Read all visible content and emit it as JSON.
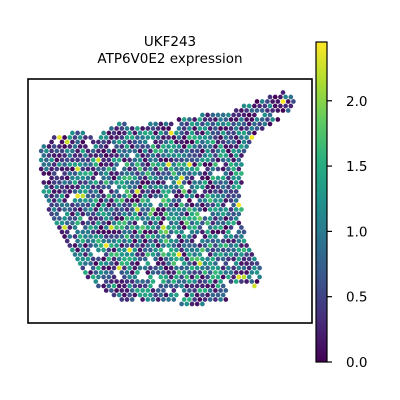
{
  "chart_data": {
    "type": "scatter",
    "subtype": "spatial-transcriptomics-hex-spots",
    "title": "UKF243",
    "subtitle": "ATP6V0E2 expression",
    "xlabel": "",
    "ylabel": "",
    "axes_ticks_visible": false,
    "grid": false,
    "colorbar": {
      "label": "",
      "colormap": "viridis",
      "range": [
        0.0,
        2.45
      ],
      "ticks": [
        0.0,
        0.5,
        1.0,
        1.5,
        2.0
      ],
      "tick_labels": [
        "0.0",
        "0.5",
        "1.0",
        "1.5",
        "2.0"
      ],
      "placement": "right"
    },
    "value_summary": {
      "min": 0.0,
      "max": 2.45,
      "typical_range": [
        0.6,
        1.8
      ],
      "note_visible_only_as_colors": true
    }
  }
}
